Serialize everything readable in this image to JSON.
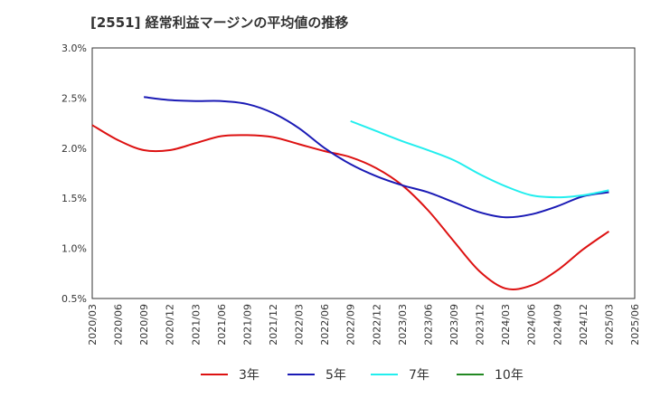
{
  "chart_data": {
    "type": "line",
    "title": "[2551]  経常利益マージンの平均値の推移",
    "xlabel": "",
    "ylabel": "",
    "x": [
      "2020/03",
      "2020/06",
      "2020/09",
      "2020/12",
      "2021/03",
      "2021/06",
      "2021/09",
      "2021/12",
      "2022/03",
      "2022/06",
      "2022/09",
      "2022/12",
      "2023/03",
      "2023/06",
      "2023/09",
      "2023/12",
      "2024/03",
      "2024/06",
      "2024/09",
      "2024/12",
      "2025/03",
      "2025/06"
    ],
    "yticks": [
      "0.5%",
      "1.0%",
      "1.5%",
      "2.0%",
      "2.5%",
      "3.0%"
    ],
    "ylim": [
      0.5,
      3.0
    ],
    "grid": true,
    "legend_position": "bottom",
    "series": [
      {
        "name": "3年",
        "color": "#dd1111",
        "values": [
          2.23,
          2.08,
          1.98,
          1.98,
          2.05,
          2.12,
          2.13,
          2.11,
          2.04,
          1.97,
          1.91,
          1.8,
          1.63,
          1.38,
          1.07,
          0.77,
          0.6,
          0.63,
          0.78,
          0.99,
          1.17,
          null
        ]
      },
      {
        "name": "5年",
        "color": "#1a1ab5",
        "values": [
          null,
          null,
          2.51,
          2.48,
          2.47,
          2.47,
          2.44,
          2.35,
          2.2,
          2.0,
          1.84,
          1.72,
          1.63,
          1.56,
          1.46,
          1.36,
          1.31,
          1.34,
          1.42,
          1.52,
          1.56,
          null
        ]
      },
      {
        "name": "7年",
        "color": "#22eeee",
        "values": [
          null,
          null,
          null,
          null,
          null,
          null,
          null,
          null,
          null,
          null,
          2.27,
          2.17,
          2.07,
          1.98,
          1.88,
          1.74,
          1.62,
          1.53,
          1.51,
          1.53,
          1.58,
          null
        ]
      },
      {
        "name": "10年",
        "color": "#228822",
        "values": [
          null,
          null,
          null,
          null,
          null,
          null,
          null,
          null,
          null,
          null,
          null,
          null,
          null,
          null,
          null,
          null,
          null,
          null,
          null,
          null,
          null,
          null
        ]
      }
    ]
  }
}
